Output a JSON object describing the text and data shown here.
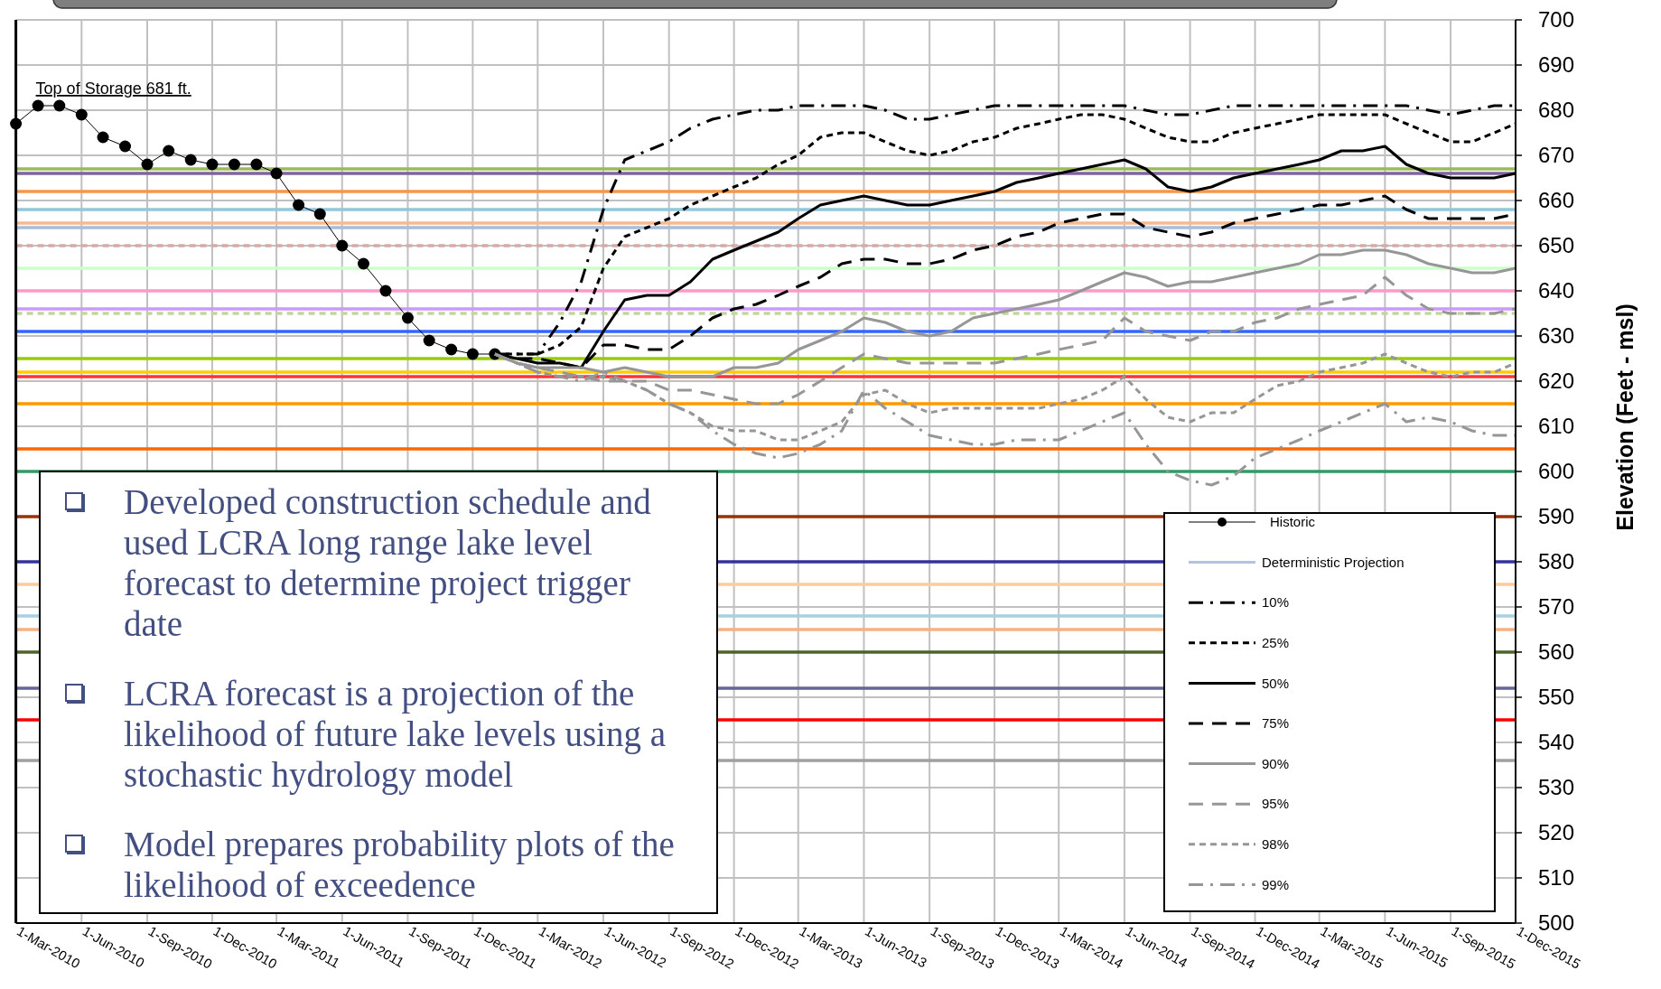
{
  "chart_data": {
    "type": "line",
    "ylabel": "Elevation (Feet - msl)",
    "xlim": [
      "2010-03-01",
      "2015-12-01"
    ],
    "xticks": [
      {
        "value": "2010-03-01",
        "label": "1-Mar-2010"
      },
      {
        "value": "2010-06-01",
        "label": "1-Jun-2010"
      },
      {
        "value": "2010-09-01",
        "label": "1-Sep-2010"
      },
      {
        "value": "2010-12-01",
        "label": "1-Dec-2010"
      },
      {
        "value": "2011-03-01",
        "label": "1-Mar-2011"
      },
      {
        "value": "2011-06-01",
        "label": "1-Jun-2011"
      },
      {
        "value": "2011-09-01",
        "label": "1-Sep-2011"
      },
      {
        "value": "2011-12-01",
        "label": "1-Dec-2011"
      },
      {
        "value": "2012-03-01",
        "label": "1-Mar-2012"
      },
      {
        "value": "2012-06-01",
        "label": "1-Jun-2012"
      },
      {
        "value": "2012-09-01",
        "label": "1-Sep-2012"
      },
      {
        "value": "2012-12-01",
        "label": "1-Dec-2012"
      },
      {
        "value": "2013-03-01",
        "label": "1-Mar-2013"
      },
      {
        "value": "2013-06-01",
        "label": "1-Jun-2013"
      },
      {
        "value": "2013-09-01",
        "label": "1-Sep-2013"
      },
      {
        "value": "2013-12-01",
        "label": "1-Dec-2013"
      },
      {
        "value": "2014-03-01",
        "label": "1-Mar-2014"
      },
      {
        "value": "2014-06-01",
        "label": "1-Jun-2014"
      },
      {
        "value": "2014-09-01",
        "label": "1-Sep-2014"
      },
      {
        "value": "2014-12-01",
        "label": "1-Dec-2014"
      },
      {
        "value": "2015-03-01",
        "label": "1-Mar-2015"
      },
      {
        "value": "2015-06-01",
        "label": "1-Jun-2015"
      },
      {
        "value": "2015-09-01",
        "label": "1-Sep-2015"
      },
      {
        "value": "2015-12-01",
        "label": "1-Dec-2015"
      }
    ],
    "ylim": [
      500,
      700
    ],
    "yticks": [
      500,
      510,
      520,
      530,
      540,
      550,
      560,
      570,
      580,
      590,
      600,
      610,
      620,
      630,
      640,
      650,
      660,
      670,
      680,
      690,
      700
    ],
    "grid": true,
    "legend": "bottom right",
    "series": [
      {
        "name": "Historic",
        "color": "#000000",
        "marker": "circle",
        "line_style": "solid",
        "x": [
          "2010-03",
          "2010-04",
          "2010-05",
          "2010-06",
          "2010-07",
          "2010-08",
          "2010-09",
          "2010-10",
          "2010-11",
          "2010-12",
          "2011-01",
          "2011-02",
          "2011-03",
          "2011-04",
          "2011-05",
          "2011-06",
          "2011-07",
          "2011-08",
          "2011-09",
          "2011-10",
          "2011-11",
          "2011-12",
          "2012-01"
        ],
        "values": [
          677,
          681,
          681,
          679,
          674,
          672,
          668,
          671,
          669,
          668,
          668,
          668,
          666,
          659,
          657,
          650,
          646,
          640,
          634,
          629,
          627,
          626,
          626
        ]
      },
      {
        "name": "Deterministic Projection",
        "color": "#b4c4e0",
        "marker": "none",
        "line_style": "solid",
        "values": [
          null,
          null,
          null,
          null,
          null,
          null,
          null,
          null,
          null,
          null,
          null,
          null,
          null,
          null,
          null,
          null,
          null,
          null,
          null,
          null,
          null,
          null,
          null,
          null,
          null,
          null,
          null,
          null,
          null,
          null,
          null,
          null,
          null,
          null,
          null,
          null,
          null,
          null,
          null,
          null,
          null,
          null,
          null,
          null,
          null,
          null,
          null,
          null
        ]
      },
      {
        "name": "10%",
        "color": "#000000",
        "marker": "none",
        "line_style": "dashdot",
        "values": [
          626,
          626,
          626,
          633,
          642,
          658,
          669,
          671,
          673,
          676,
          678,
          679,
          680,
          680,
          681,
          681,
          681,
          681,
          680,
          678,
          678,
          679,
          680,
          681,
          681,
          681,
          681,
          681,
          681,
          681,
          680,
          679,
          679,
          680,
          681,
          681,
          681,
          681,
          681,
          681,
          681,
          681,
          681,
          680,
          679,
          680,
          681,
          681
        ]
      },
      {
        "name": "25%",
        "color": "#000000",
        "marker": "none",
        "line_style": "dashed",
        "values": [
          626,
          626,
          626,
          628,
          632,
          645,
          652,
          654,
          656,
          659,
          661,
          663,
          665,
          668,
          670,
          674,
          675,
          675,
          673,
          671,
          670,
          671,
          673,
          674,
          676,
          677,
          678,
          679,
          679,
          678,
          676,
          674,
          673,
          673,
          675,
          676,
          677,
          678,
          679,
          679,
          679,
          679,
          677,
          675,
          673,
          673,
          675,
          677
        ]
      },
      {
        "name": "50%",
        "color": "#000000",
        "marker": "none",
        "line_style": "solid",
        "values": [
          626,
          625,
          624,
          624,
          623,
          631,
          638,
          639,
          639,
          642,
          647,
          649,
          651,
          653,
          656,
          659,
          660,
          661,
          660,
          659,
          659,
          660,
          661,
          662,
          664,
          665,
          666,
          667,
          668,
          669,
          667,
          663,
          662,
          663,
          665,
          666,
          667,
          668,
          669,
          671,
          671,
          672,
          668,
          666,
          665,
          665,
          665,
          666
        ]
      },
      {
        "name": "75%",
        "color": "#000000",
        "marker": "none",
        "line_style": "longdash",
        "values": [
          626,
          625,
          625,
          624,
          623,
          628,
          628,
          627,
          627,
          630,
          634,
          636,
          637,
          639,
          641,
          643,
          646,
          647,
          647,
          646,
          646,
          647,
          649,
          650,
          652,
          653,
          655,
          656,
          657,
          657,
          654,
          653,
          652,
          653,
          655,
          656,
          657,
          658,
          659,
          659,
          660,
          661,
          658,
          656,
          656,
          656,
          656,
          657
        ]
      },
      {
        "name": "90%",
        "color": "#969696",
        "marker": "none",
        "line_style": "solid",
        "values": [
          626,
          624,
          623,
          623,
          623,
          622,
          623,
          622,
          621,
          621,
          621,
          623,
          623,
          624,
          627,
          629,
          631,
          634,
          633,
          631,
          630,
          631,
          634,
          635,
          636,
          637,
          638,
          640,
          642,
          644,
          643,
          641,
          642,
          642,
          643,
          644,
          645,
          646,
          648,
          648,
          649,
          649,
          648,
          646,
          645,
          644,
          644,
          645
        ]
      },
      {
        "name": "95%",
        "color": "#969696",
        "marker": "none",
        "line_style": "longdash",
        "values": [
          626,
          624,
          623,
          622,
          621,
          620,
          620,
          620,
          618,
          618,
          617,
          616,
          615,
          615,
          617,
          620,
          623,
          626,
          625,
          624,
          624,
          624,
          624,
          624,
          625,
          626,
          627,
          628,
          629,
          634,
          631,
          630,
          629,
          631,
          631,
          633,
          634,
          636,
          637,
          638,
          639,
          643,
          639,
          636,
          635,
          635,
          635,
          636
        ]
      },
      {
        "name": "98%",
        "color": "#969696",
        "marker": "none",
        "line_style": "dashed",
        "values": [
          626,
          624,
          622,
          621,
          621,
          621,
          620,
          618,
          615,
          613,
          610,
          609,
          609,
          607,
          607,
          609,
          611,
          617,
          618,
          615,
          613,
          614,
          614,
          614,
          614,
          614,
          615,
          616,
          618,
          621,
          616,
          612,
          611,
          613,
          613,
          616,
          619,
          620,
          622,
          623,
          624,
          626,
          624,
          622,
          621,
          622,
          622,
          624
        ]
      },
      {
        "name": "99%",
        "color": "#969696",
        "marker": "none",
        "line_style": "dashdot",
        "values": [
          626,
          624,
          622,
          621,
          620,
          622,
          620,
          618,
          615,
          613,
          609,
          606,
          604,
          603,
          604,
          606,
          609,
          618,
          614,
          611,
          608,
          607,
          606,
          606,
          607,
          607,
          607,
          609,
          611,
          613,
          606,
          600,
          598,
          597,
          599,
          603,
          605,
          607,
          609,
          611,
          613,
          615,
          611,
          612,
          611,
          609,
          608,
          608
        ]
      }
    ],
    "x": [
      "2012-01",
      "2012-02",
      "2012-03",
      "2012-04",
      "2012-05",
      "2012-06",
      "2012-07",
      "2012-08",
      "2012-09",
      "2012-10",
      "2012-11",
      "2012-12",
      "2013-01",
      "2013-02",
      "2013-03",
      "2013-04",
      "2013-05",
      "2013-06",
      "2013-07",
      "2013-08",
      "2013-09",
      "2013-10",
      "2013-11",
      "2013-12",
      "2014-01",
      "2014-02",
      "2014-03",
      "2014-04",
      "2014-05",
      "2014-06",
      "2014-07",
      "2014-08",
      "2014-09",
      "2014-10",
      "2014-11",
      "2014-12",
      "2015-01",
      "2015-02",
      "2015-03",
      "2015-04",
      "2015-05",
      "2015-06",
      "2015-07",
      "2015-08",
      "2015-09",
      "2015-10",
      "2015-11",
      "2015-12"
    ],
    "ref_lines": [
      {
        "axis": "y",
        "value": 667,
        "color": "#9bbb59"
      },
      {
        "axis": "y",
        "value": 666,
        "color": "#8064a2"
      },
      {
        "axis": "y",
        "value": 662,
        "color": "#f79646"
      },
      {
        "axis": "y",
        "value": 658,
        "color": "#92c5de"
      },
      {
        "axis": "y",
        "value": 655,
        "color": "#f8b990"
      },
      {
        "axis": "y",
        "value": 654,
        "color": "#a6bddb"
      },
      {
        "axis": "y",
        "value": 650,
        "color": "#d9a9a9",
        "line_style": "dashed"
      },
      {
        "axis": "y",
        "value": 645,
        "color": "#ccffcc"
      },
      {
        "axis": "y",
        "value": 640,
        "color": "#ff99cc"
      },
      {
        "axis": "y",
        "value": 636,
        "color": "#cc99ff"
      },
      {
        "axis": "y",
        "value": 635,
        "color": "#c4d79b",
        "line_style": "dashed"
      },
      {
        "axis": "y",
        "value": 631,
        "color": "#3366ff"
      },
      {
        "axis": "y",
        "value": 625,
        "color": "#99cc00"
      },
      {
        "axis": "y",
        "value": 622,
        "color": "#ffcc00"
      },
      {
        "axis": "y",
        "value": 621,
        "color": "#ff3333"
      },
      {
        "axis": "y",
        "value": 615,
        "color": "#ff9900"
      },
      {
        "axis": "y",
        "value": 605,
        "color": "#ff6600"
      },
      {
        "axis": "y",
        "value": 600,
        "color": "#339966"
      },
      {
        "axis": "y",
        "value": 590,
        "color": "#993300"
      },
      {
        "axis": "y",
        "value": 580,
        "color": "#333399"
      },
      {
        "axis": "y",
        "value": 575,
        "color": "#ffcc99"
      },
      {
        "axis": "y",
        "value": 568,
        "color": "#a8d0e0"
      },
      {
        "axis": "y",
        "value": 565,
        "color": "#f4b183"
      },
      {
        "axis": "y",
        "value": 560,
        "color": "#4f6228"
      },
      {
        "axis": "y",
        "value": 552,
        "color": "#666699"
      },
      {
        "axis": "y",
        "value": 545,
        "color": "#ff0000"
      },
      {
        "axis": "y",
        "value": 536,
        "color": "#a0a0a0"
      }
    ],
    "annotations": [
      "Top of Storage 681 ft.",
      "Developed construction schedule and used LCRA long range lake level forecast to determine project trigger date",
      "LCRA forecast is a projection of the likelihood of future lake levels using a stochastic hydrology model",
      "Model prepares probability plots of the likelihood of exceedence"
    ]
  }
}
